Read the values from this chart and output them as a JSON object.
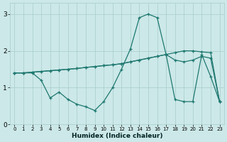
{
  "xlabel": "Humidex (Indice chaleur)",
  "bg_color": "#cce8e8",
  "line_color": "#1e7870",
  "grid_color": "#a8cccc",
  "xlim": [
    -0.5,
    23.5
  ],
  "ylim": [
    0,
    3.3
  ],
  "yticks": [
    0,
    1,
    2,
    3
  ],
  "xticks": [
    0,
    1,
    2,
    3,
    4,
    5,
    6,
    7,
    8,
    9,
    10,
    11,
    12,
    13,
    14,
    15,
    16,
    17,
    18,
    19,
    20,
    21,
    22,
    23
  ],
  "line1_x": [
    0,
    1,
    2,
    3,
    4,
    5,
    6,
    7,
    8,
    9,
    10,
    11,
    12,
    13,
    14,
    15,
    16,
    17,
    18,
    19,
    20,
    21,
    22,
    23
  ],
  "line1_y": [
    1.4,
    1.4,
    1.42,
    1.44,
    1.46,
    1.48,
    1.5,
    1.52,
    1.55,
    1.57,
    1.6,
    1.62,
    1.65,
    1.7,
    1.75,
    1.8,
    1.85,
    1.9,
    1.95,
    2.0,
    2.0,
    1.97,
    1.95,
    0.62
  ],
  "line2_x": [
    0,
    1,
    2,
    3,
    4,
    5,
    6,
    7,
    8,
    9,
    10,
    11,
    12,
    13,
    14,
    15,
    16,
    17,
    18,
    19,
    20,
    21,
    22,
    23
  ],
  "line2_y": [
    1.4,
    1.4,
    1.42,
    1.44,
    1.46,
    1.48,
    1.5,
    1.52,
    1.55,
    1.57,
    1.6,
    1.62,
    1.65,
    1.7,
    1.75,
    1.8,
    1.85,
    1.9,
    1.75,
    1.7,
    1.75,
    1.85,
    1.8,
    0.62
  ],
  "line3_x": [
    0,
    1,
    2,
    3,
    4,
    5,
    6,
    7,
    8,
    9,
    10,
    11,
    12,
    13,
    14,
    15,
    16,
    17,
    18,
    19,
    20,
    21,
    22,
    23
  ],
  "line3_y": [
    1.4,
    1.4,
    1.4,
    1.2,
    0.72,
    0.88,
    0.68,
    0.55,
    0.48,
    0.38,
    0.62,
    1.0,
    1.5,
    2.05,
    2.9,
    3.0,
    2.9,
    1.9,
    0.68,
    0.62,
    0.62,
    1.9,
    1.3,
    0.62
  ]
}
